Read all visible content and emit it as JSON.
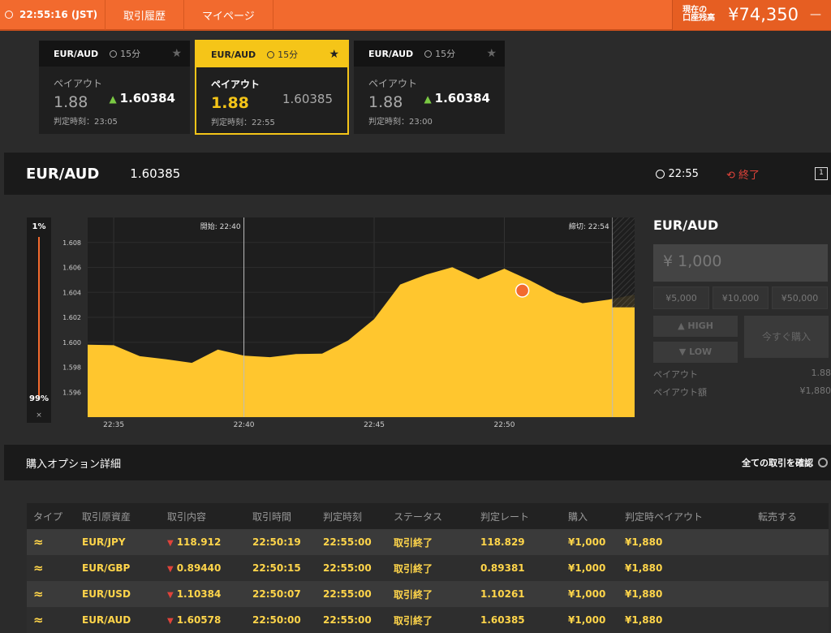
{
  "topbar": {
    "clock": "22:55:16 (JST)",
    "nav": [
      "取引履歴",
      "マイページ"
    ],
    "balance_label_1": "現在の",
    "balance_label_2": "口座残高",
    "balance_value": "¥74,350"
  },
  "cards": [
    {
      "pair": "EUR/AUD",
      "period": "15分",
      "payout_label": "ペイアウト",
      "payout": "1.88",
      "rate": "1.60384",
      "judge": "判定時刻：23:05",
      "active": false,
      "up": true
    },
    {
      "pair": "EUR/AUD",
      "period": "15分",
      "payout_label": "ペイアウト",
      "payout": "1.88",
      "rate": "1.60385",
      "judge": "判定時刻：22:55",
      "active": true,
      "up": false
    },
    {
      "pair": "EUR/AUD",
      "period": "15分",
      "payout_label": "ペイアウト",
      "payout": "1.88",
      "rate": "1.60384",
      "judge": "判定時刻：23:00",
      "active": false,
      "up": true
    }
  ],
  "pairbar": {
    "pair": "EUR/AUD",
    "price": "1.60385",
    "expiry": "22:55",
    "status": "終了",
    "window": "1"
  },
  "slider": {
    "top": "1%",
    "bottom": "99%",
    "close": "×"
  },
  "chart_data": {
    "type": "area",
    "x": [
      "22:34",
      "22:35",
      "22:36",
      "22:37",
      "22:38",
      "22:39",
      "22:40",
      "22:41",
      "22:42",
      "22:43",
      "22:44",
      "22:45",
      "22:46",
      "22:47",
      "22:48",
      "22:49",
      "22:50",
      "22:51",
      "22:52",
      "22:53",
      "22:54",
      "22:55"
    ],
    "values": [
      1.5998,
      1.5997,
      1.599,
      1.5985,
      1.5985,
      1.5993,
      1.599,
      1.5988,
      1.599,
      1.5992,
      1.6,
      1.602,
      1.6045,
      1.6055,
      1.606,
      1.605,
      1.606,
      1.6048,
      1.604,
      1.603,
      1.6035,
      1.6038
    ],
    "ylim": [
      1.594,
      1.61
    ],
    "yticks": [
      "1.608",
      "1.606",
      "1.604",
      "1.602",
      "1.600",
      "1.598",
      "1.596"
    ],
    "xticks": [
      "22:35",
      "22:40",
      "22:45",
      "22:50"
    ],
    "start_label": "開始: 22:40",
    "close_label": "締切: 22:54",
    "color": "#ffc62e"
  },
  "order": {
    "pair": "EUR/AUD",
    "amount": "¥ 1,000",
    "quick": [
      "¥5,000",
      "¥10,000",
      "¥50,000"
    ],
    "high": "HIGH",
    "low": "LOW",
    "buy": "今すぐ購入",
    "payout_label": "ペイアウト",
    "payout_value": "1.88",
    "payout_amount_label": "ペイアウト額",
    "payout_amount_value": "¥1,880"
  },
  "detail": {
    "title": "購入オプション詳細",
    "all": "全ての取引を確認"
  },
  "table": {
    "headers": [
      "タイプ",
      "取引原資産",
      "取引内容",
      "取引時間",
      "判定時刻",
      "ステータス",
      "判定レート",
      "購入",
      "判定時ペイアウト",
      "転売する"
    ],
    "rows": [
      {
        "asset": "EUR/JPY",
        "content": "118.912",
        "time": "22:50:19",
        "judge": "22:55:00",
        "status": "取引終了",
        "rate": "118.829",
        "buy": "¥1,000",
        "payout": "¥1,880"
      },
      {
        "asset": "EUR/GBP",
        "content": "0.89440",
        "time": "22:50:15",
        "judge": "22:55:00",
        "status": "取引終了",
        "rate": "0.89381",
        "buy": "¥1,000",
        "payout": "¥1,880"
      },
      {
        "asset": "EUR/USD",
        "content": "1.10384",
        "time": "22:50:07",
        "judge": "22:55:00",
        "status": "取引終了",
        "rate": "1.10261",
        "buy": "¥1,000",
        "payout": "¥1,880"
      },
      {
        "asset": "EUR/AUD",
        "content": "1.60578",
        "time": "22:50:00",
        "judge": "22:55:00",
        "status": "取引終了",
        "rate": "1.60385",
        "buy": "¥1,000",
        "payout": "¥1,880"
      }
    ]
  }
}
